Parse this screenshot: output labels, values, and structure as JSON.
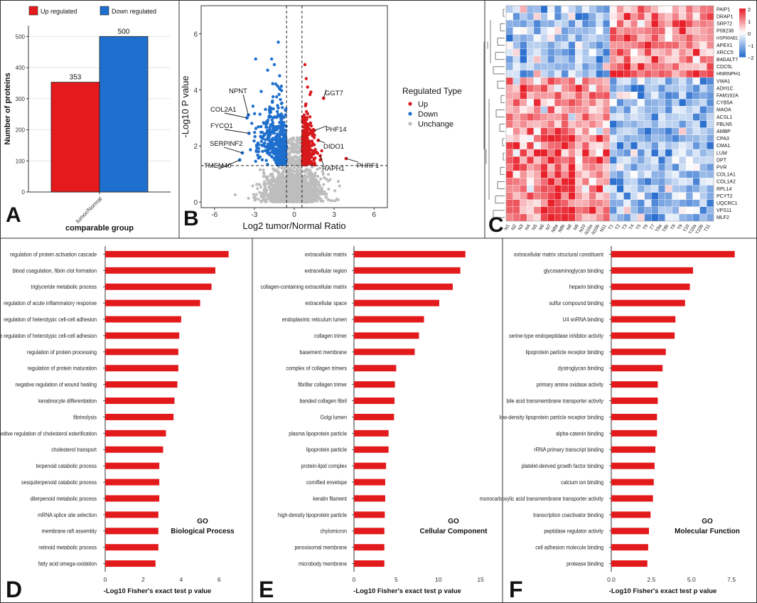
{
  "chart_data": [
    {
      "panel": "A",
      "type": "bar",
      "legend": [
        {
          "name": "Up regulated",
          "color": "#e41a1c"
        },
        {
          "name": "Down regulated",
          "color": "#1f6fce"
        }
      ],
      "categories": [
        "tumor/Normal"
      ],
      "series": [
        {
          "name": "Up regulated",
          "values": [
            353
          ],
          "label": "353"
        },
        {
          "name": "Down regulated",
          "values": [
            500
          ],
          "label": "500"
        }
      ],
      "ylabel": "Number of proteins",
      "xlabel": "comparable group",
      "ylim": [
        0,
        535
      ],
      "yticks": [
        0,
        100,
        200,
        300,
        400,
        500
      ]
    },
    {
      "panel": "B",
      "type": "scatter",
      "xlabel": "Log2 tumor/Normal Ratio",
      "ylabel": "-Log10 P value",
      "xlim": [
        -7,
        7
      ],
      "ylim": [
        -0.2,
        7
      ],
      "xticks": [
        -6,
        -3,
        0,
        3,
        6
      ],
      "yticks": [
        0,
        2,
        4,
        6
      ],
      "thresholds": {
        "x": [
          -0.58,
          0.58
        ],
        "y": 1.3
      },
      "legend_title": "Regulated Type",
      "legend": [
        {
          "name": "Up",
          "color": "#d7191c"
        },
        {
          "name": "Down",
          "color": "#1f6fce"
        },
        {
          "name": "Unchange",
          "color": "#bdbdbd"
        }
      ],
      "labeled_points": [
        {
          "label": "NPNT",
          "x": -3.45,
          "y": 3.1
        },
        {
          "label": "COL2A1",
          "x": -3.55,
          "y": 3.0
        },
        {
          "label": "FYCO1",
          "x": -3.4,
          "y": 2.45
        },
        {
          "label": "SERPINF2",
          "x": -3.9,
          "y": 1.75
        },
        {
          "label": "TMEM40",
          "x": -4.1,
          "y": 1.5
        },
        {
          "label": "GGT7",
          "x": 2.2,
          "y": 3.7
        },
        {
          "label": "PHF14",
          "x": 1.5,
          "y": 2.55
        },
        {
          "label": "DIDO1",
          "x": 1.8,
          "y": 2.2
        },
        {
          "label": "RAPH1",
          "x": 1.95,
          "y": 1.65
        },
        {
          "label": "PHRF1",
          "x": 3.9,
          "y": 1.55
        }
      ]
    },
    {
      "panel": "C",
      "type": "heatmap",
      "columns": [
        "N1",
        "N2",
        "N3",
        "N4",
        "N5",
        "N6",
        "N7",
        "N8a",
        "N8b",
        "N8",
        "N9",
        "N10",
        "N10a",
        "N10b",
        "N11",
        "T1",
        "T2",
        "T3",
        "T4",
        "T5",
        "T6",
        "T7",
        "T8a",
        "T8b",
        "T8",
        "T9",
        "T10",
        "T10a",
        "T10b",
        "T11"
      ],
      "rows": [
        "PAIP1",
        "DRAP1",
        "SRP72",
        "P08238",
        "HSP90AB1",
        "APEX1",
        "XRCC5",
        "B4GALT7",
        "CDC5L",
        "HNRNPH1",
        "VWA1",
        "ADH1C",
        "FAM162A",
        "CYB5A",
        "MAOA",
        "ACSL1",
        "FBLN5",
        "AMBP",
        "CPA3",
        "CMA1",
        "LUM",
        "DPT",
        "PVR",
        "COL1A1",
        "COL1A2",
        "RPL14",
        "PCYT2",
        "UQCRC1",
        "VPS11",
        "MLF2"
      ],
      "colorbar_ticks": [
        "2",
        "1",
        "0",
        "−1",
        "−2"
      ],
      "colors": {
        "high": "#e8202a",
        "mid": "#ffffff",
        "low": "#2b6fcf"
      }
    },
    {
      "panel": "D",
      "type": "bar",
      "orientation": "horizontal",
      "annotation": "GO",
      "annotation2": "Biological Process",
      "xlabel": "-Log10 Fisher's exact test p value",
      "xlim": [
        0,
        7
      ],
      "xticks": [
        0,
        2,
        4,
        6
      ],
      "categories": [
        "regulation of protein activation cascade",
        "blood coagulation, fibrin clot formation",
        "triglyceride metabolic process",
        "regulation of acute inflammatory response",
        "regulation of heterotypic cell-cell adhesion",
        "positive regulation of heterotypic cell-cell adhesion",
        "regulation of protein processing",
        "regulation of protein maturation",
        "negative regulation of wound healing",
        "keratinocyte differentiation",
        "fibrinolysis",
        "positive regulation of cholesterol esterification",
        "cholesterol transport",
        "terpenoid catabolic process",
        "sesquiterpenoid catabolic process",
        "diterpenoid metabolic process",
        "mRNA splice site selection",
        "membrane raft assembly",
        "retinoid metabolic process",
        "fatty acid omega-oxidation"
      ],
      "values": [
        6.5,
        5.8,
        5.6,
        5.0,
        4.0,
        3.9,
        3.85,
        3.85,
        3.8,
        3.65,
        3.6,
        3.2,
        3.05,
        2.85,
        2.85,
        2.85,
        2.8,
        2.8,
        2.8,
        2.65
      ]
    },
    {
      "panel": "E",
      "type": "bar",
      "orientation": "horizontal",
      "annotation": "GO",
      "annotation2": "Cellular Component",
      "xlabel": "-Log10 Fisher's exact test p value",
      "xlim": [
        0,
        16
      ],
      "xticks": [
        0,
        5,
        10,
        15
      ],
      "categories": [
        "extracellular matrix",
        "extracellular region",
        "collagen-containing extracellular matrix",
        "extracellular space",
        "endoplasmic reticulum lumen",
        "collagen trimer",
        "basement membrane",
        "complex of collagen trimers",
        "fibrillar collagen trimer",
        "banded collagen fibril",
        "Golgi lumen",
        "plasma lipoprotein particle",
        "lipoprotein particle",
        "protein-lipid complex",
        "cornified envelope",
        "keratin filament",
        "high-density lipoprotein particle",
        "chylomicron",
        "peroxisomal membrane",
        "microbody membrane"
      ],
      "values": [
        13.2,
        12.6,
        11.7,
        10.1,
        8.3,
        7.7,
        7.2,
        5.0,
        4.85,
        4.8,
        4.75,
        4.1,
        4.1,
        3.8,
        3.7,
        3.7,
        3.65,
        3.6,
        3.6,
        3.6
      ]
    },
    {
      "panel": "F",
      "type": "bar",
      "orientation": "horizontal",
      "annotation": "GO",
      "annotation2": "Molecular Function",
      "xlabel": "-Log10 Fisher's exact test p value",
      "xlim": [
        0,
        8.2
      ],
      "xticks": [
        0,
        2.5,
        5,
        7.5
      ],
      "xtick_labels": [
        "0.0",
        "2.5",
        "5.0",
        "7.5"
      ],
      "categories": [
        "extracellular matrix structural constituent",
        "glycosaminoglycan binding",
        "heparin binding",
        "sulfur compound binding",
        "U4 snRNA binding",
        "serine-type endopeptidase inhibitor activity",
        "lipoprotein particle receptor binding",
        "dystroglycan binding",
        "primary amine oxidase activity",
        "bile acid transmembrane transporter activity",
        "low-density lipoprotein particle receptor binding",
        "alpha-catenin binding",
        "rRNA primary transcript binding",
        "platelet-derived growth factor binding",
        "calcium ion binding",
        "monocarboxylic acid transmembrane transporter activity",
        "transcription coactivator binding",
        "peptidase regulator activity",
        "cell adhesion molecule binding",
        "protease binding"
      ],
      "values": [
        7.7,
        5.1,
        4.9,
        4.6,
        4.0,
        3.95,
        3.4,
        3.2,
        2.9,
        2.9,
        2.85,
        2.85,
        2.75,
        2.7,
        2.65,
        2.6,
        2.45,
        2.35,
        2.3,
        2.25
      ]
    }
  ],
  "panel_letters": [
    "A",
    "B",
    "C",
    "D",
    "E",
    "F"
  ],
  "colors": {
    "bar_red": "#e41a1c",
    "bar_blue": "#1f6fce",
    "go_red": "#e31a1c"
  }
}
